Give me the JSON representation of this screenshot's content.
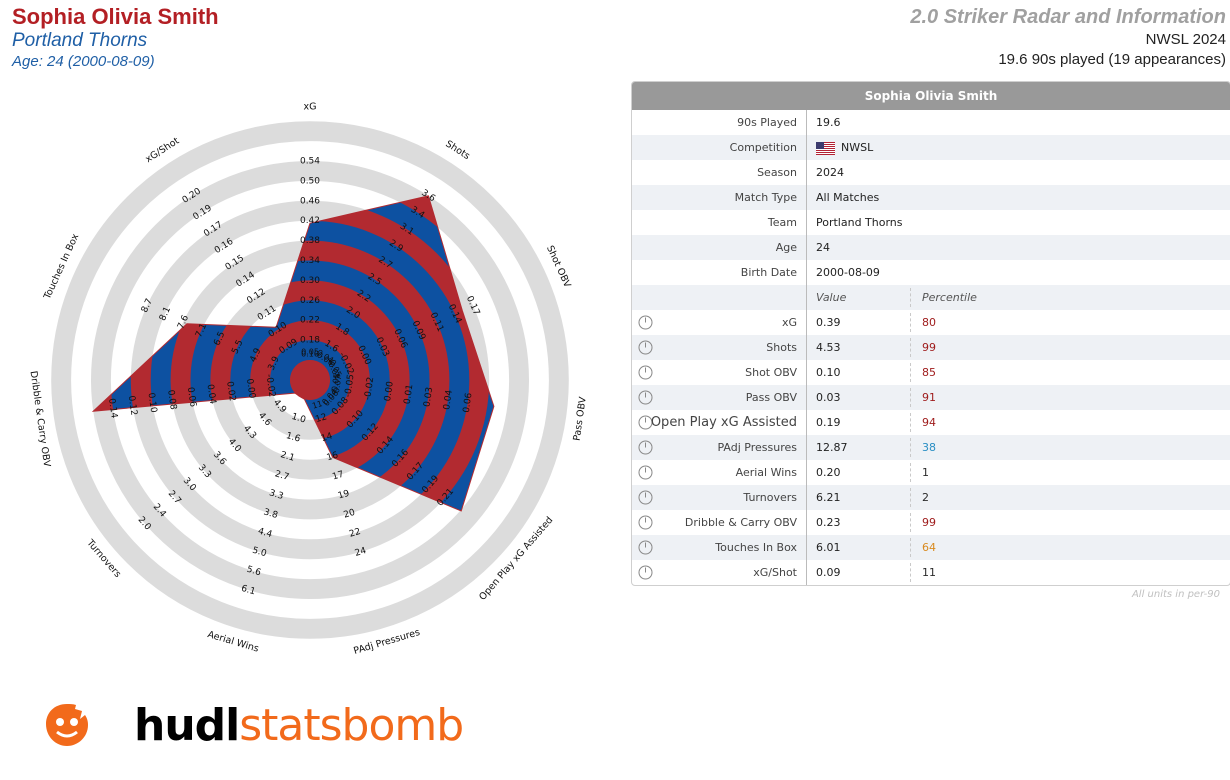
{
  "header": {
    "player_name": "Sophia Olivia Smith",
    "team": "Portland Thorns",
    "age_line": "Age: 24 (2000-08-09)",
    "report_title": "2.0 Striker Radar and Information",
    "competition_line": "NWSL 2024",
    "played_line": "19.6 90s played (19 appearances)"
  },
  "colors": {
    "player_red": "#b31f24",
    "team_blue": "#1f5fa6",
    "radar_blue": "#0d51a1",
    "radar_red": "#b22a30",
    "ring_gray": "#dcdcdc",
    "pct_red": "#9e1a1a",
    "pct_blue": "#2a8fc4",
    "pct_orange": "#d98a1f",
    "pct_dark": "#2b2b2b",
    "brand_orange": "#f26a1b"
  },
  "chart_data": {
    "type": "radar",
    "series": [
      {
        "values": [
          0.39,
          4.53,
          0.1,
          0.03,
          0.19,
          12.87,
          0.2,
          6.21,
          0.23,
          6.01,
          0.09
        ]
      }
    ],
    "axes": [
      {
        "label": "xG",
        "ticks": [
          "0.18",
          "0.22",
          "0.26",
          "0.30",
          "0.34",
          "0.38",
          "0.42",
          "0.46",
          "0.50",
          "0.54"
        ],
        "inner_ticks": [
          "0.10",
          "0.05"
        ],
        "min": 0.06,
        "max": 0.54
      },
      {
        "label": "Shots",
        "ticks": [
          "1.6",
          "1.8",
          "2.0",
          "2.2",
          "2.5",
          "2.7",
          "2.9",
          "3.1",
          "3.4",
          "3.6"
        ],
        "inner_ticks": [
          "-0.06",
          "0.04"
        ],
        "min": 0.75,
        "max": 3.6
      },
      {
        "label": "Shot OBV",
        "ticks": [
          "-0.02",
          "0.00",
          "0.03",
          "0.06",
          "0.09",
          "0.11",
          "0.14",
          "0.17"
        ],
        "inner_ticks": [
          "-0.05",
          "0.05"
        ],
        "min": -0.1,
        "max": 0.17
      },
      {
        "label": "Pass OBV",
        "ticks": [
          "-0.05",
          "-0.02",
          "0.00",
          "0.01",
          "0.03",
          "0.04",
          "0.06"
        ],
        "inner_ticks": [
          "-0.05",
          "0.07"
        ],
        "min": -0.12,
        "max": 0.06
      },
      {
        "label": "Open Play xG Assisted",
        "ticks": [
          "0.08",
          "0.10",
          "0.12",
          "0.14",
          "0.16",
          "0.17",
          "0.19",
          "0.21"
        ],
        "inner_ticks": [
          "0.04",
          "0.06"
        ],
        "min": 0.0,
        "max": 0.21
      },
      {
        "label": "PAdj Pressures",
        "ticks": [
          "12",
          "14",
          "16",
          "17",
          "19",
          "20",
          "22",
          "24"
        ],
        "inner_ticks": [
          "11"
        ],
        "min": 8,
        "max": 24
      },
      {
        "label": "Aerial Wins",
        "ticks": [
          "1.0",
          "1.6",
          "2.1",
          "2.7",
          "3.3",
          "3.8",
          "4.4",
          "5.0",
          "5.6",
          "6.1"
        ],
        "inner_ticks": [],
        "min": 1.0,
        "max": 6.1
      },
      {
        "label": "Turnovers",
        "ticks": [
          "4.9",
          "4.6",
          "4.3",
          "4.0",
          "3.6",
          "3.3",
          "3.0",
          "2.7",
          "2.4",
          "2.0"
        ],
        "inner_ticks": [],
        "min": 4.9,
        "max": 2.0,
        "reversed": true
      },
      {
        "label": "Dribble & Carry OBV",
        "ticks": [
          "-0.02",
          "0.00",
          "0.02",
          "0.04",
          "0.06",
          "0.08",
          "0.10",
          "0.12",
          "0.14"
        ],
        "inner_ticks": [],
        "min": -0.04,
        "max": 0.14
      },
      {
        "label": "Touches In Box",
        "ticks": [
          "3.9",
          "4.9",
          "5.5",
          "6.5",
          "7.1",
          "7.6",
          "8.1",
          "8.7"
        ],
        "inner_ticks": [],
        "min": 2.3,
        "max": 8.7
      },
      {
        "label": "xG/Shot",
        "ticks": [
          "0.09",
          "0.10",
          "0.11",
          "0.12",
          "0.14",
          "0.15",
          "0.16",
          "0.17",
          "0.19",
          "0.20"
        ],
        "inner_ticks": [],
        "min": 0.06,
        "max": 0.2
      }
    ]
  },
  "table": {
    "title": "Sophia Olivia Smith",
    "info_rows": [
      {
        "label": "90s Played",
        "value": "19.6"
      },
      {
        "label": "Competition",
        "value": "NWSL",
        "flag": true
      },
      {
        "label": "Season",
        "value": "2024"
      },
      {
        "label": "Match Type",
        "value": "All Matches"
      },
      {
        "label": "Team",
        "value": "Portland Thorns"
      },
      {
        "label": "Age",
        "value": "24"
      },
      {
        "label": "Birth Date",
        "value": "2000-08-09"
      }
    ],
    "subheader": {
      "value": "Value",
      "percentile": "Percentile"
    },
    "stat_rows": [
      {
        "label": "xG",
        "value": "0.39",
        "percentile": "80",
        "pct_color": "#9e1a1a",
        "icon": "gauge-icon"
      },
      {
        "label": "Shots",
        "value": "4.53",
        "percentile": "99",
        "pct_color": "#9e1a1a",
        "icon": "gauge-icon"
      },
      {
        "label": "Shot OBV",
        "value": "0.10",
        "percentile": "85",
        "pct_color": "#9e1a1a",
        "icon": "gauge-icon"
      },
      {
        "label": "Pass OBV",
        "value": "0.03",
        "percentile": "91",
        "pct_color": "#9e1a1a",
        "icon": "gauge-icon"
      },
      {
        "label": "Open Play xG Assisted",
        "value": "0.19",
        "percentile": "94",
        "pct_color": "#9e1a1a",
        "icon": "gauge-icon",
        "large": true
      },
      {
        "label": "PAdj Pressures",
        "value": "12.87",
        "percentile": "38",
        "pct_color": "#2a8fc4",
        "icon": "gauge-icon"
      },
      {
        "label": "Aerial Wins",
        "value": "0.20",
        "percentile": "1",
        "pct_color": "#2b2b2b",
        "icon": "gauge-icon"
      },
      {
        "label": "Turnovers",
        "value": "6.21",
        "percentile": "2",
        "pct_color": "#2b2b2b",
        "icon": "gauge-icon"
      },
      {
        "label": "Dribble & Carry OBV",
        "value": "0.23",
        "percentile": "99",
        "pct_color": "#9e1a1a",
        "icon": "gauge-icon"
      },
      {
        "label": "Touches In Box",
        "value": "6.01",
        "percentile": "64",
        "pct_color": "#d98a1f",
        "icon": "gauge-icon"
      },
      {
        "label": "xG/Shot",
        "value": "0.09",
        "percentile": "11",
        "pct_color": "#2b2b2b",
        "icon": "gauge-icon"
      }
    ],
    "footnote": "All units in per-90"
  },
  "logo": {
    "part1": "hudl",
    "part2": "statsbomb"
  }
}
